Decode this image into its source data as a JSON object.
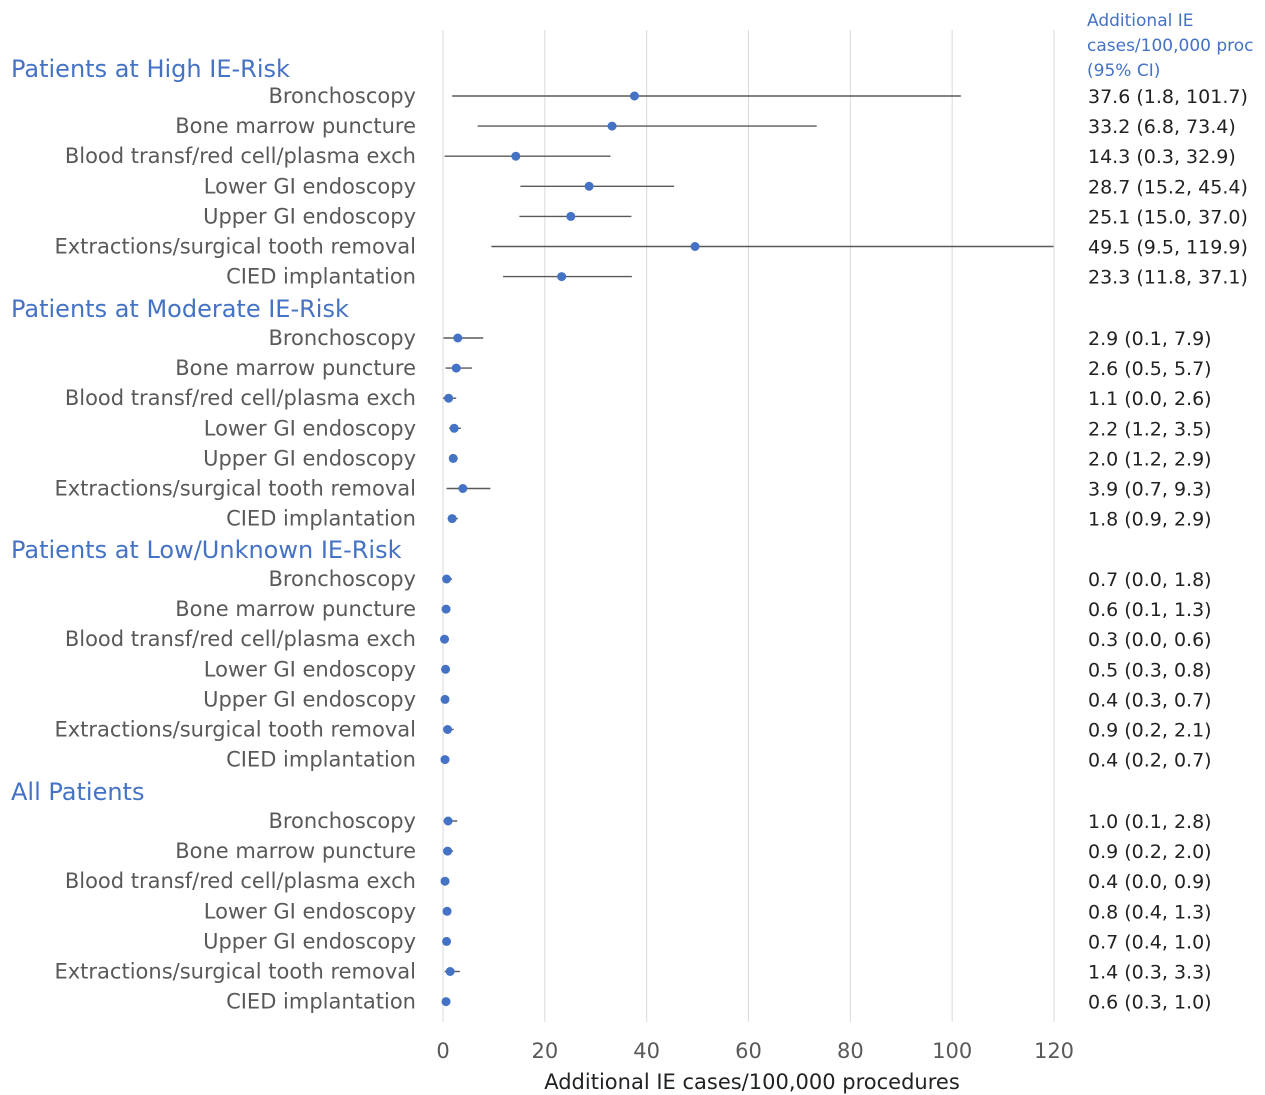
{
  "chart_data": {
    "type": "forest",
    "xlabel": "Additional IE cases/100,000 procedures",
    "xlim": [
      0,
      120
    ],
    "xticks": [
      0,
      20,
      40,
      60,
      80,
      100,
      120
    ],
    "grid": true,
    "ci_column_header": [
      "Additional IE",
      "cases/100,000 proc",
      "(95% CI)"
    ],
    "colors": {
      "point": "#4472C4",
      "ci_line": "#595959",
      "grid": "#D9D9D9",
      "group_title": "#4472C4"
    },
    "groups": [
      {
        "name": "Patients at High IE-Risk",
        "rows": [
          {
            "label": "Bronchoscopy",
            "value": 37.6,
            "lo": 1.8,
            "hi": 101.7,
            "text": "37.6 (1.8, 101.7)"
          },
          {
            "label": "Bone marrow puncture",
            "value": 33.2,
            "lo": 6.8,
            "hi": 73.4,
            "text": "33.2 (6.8, 73.4)"
          },
          {
            "label": "Blood transf/red cell/plasma exch",
            "value": 14.3,
            "lo": 0.3,
            "hi": 32.9,
            "text": "14.3 (0.3, 32.9)"
          },
          {
            "label": "Lower GI endoscopy",
            "value": 28.7,
            "lo": 15.2,
            "hi": 45.4,
            "text": "28.7 (15.2, 45.4)"
          },
          {
            "label": "Upper GI endoscopy",
            "value": 25.1,
            "lo": 15.0,
            "hi": 37.0,
            "text": "25.1 (15.0, 37.0)"
          },
          {
            "label": "Extractions/surgical tooth removal",
            "value": 49.5,
            "lo": 9.5,
            "hi": 119.9,
            "text": "49.5 (9.5, 119.9)"
          },
          {
            "label": "CIED implantation",
            "value": 23.3,
            "lo": 11.8,
            "hi": 37.1,
            "text": "23.3 (11.8, 37.1)"
          }
        ]
      },
      {
        "name": "Patients at Moderate IE-Risk",
        "rows": [
          {
            "label": "Bronchoscopy",
            "value": 2.9,
            "lo": 0.1,
            "hi": 7.9,
            "text": "2.9 (0.1, 7.9)"
          },
          {
            "label": "Bone marrow puncture",
            "value": 2.6,
            "lo": 0.5,
            "hi": 5.7,
            "text": "2.6 (0.5, 5.7)"
          },
          {
            "label": "Blood transf/red cell/plasma exch",
            "value": 1.1,
            "lo": 0.0,
            "hi": 2.6,
            "text": "1.1 (0.0, 2.6)"
          },
          {
            "label": "Lower GI endoscopy",
            "value": 2.2,
            "lo": 1.2,
            "hi": 3.5,
            "text": "2.2 (1.2, 3.5)"
          },
          {
            "label": "Upper GI endoscopy",
            "value": 2.0,
            "lo": 1.2,
            "hi": 2.9,
            "text": "2.0 (1.2, 2.9)"
          },
          {
            "label": "Extractions/surgical tooth removal",
            "value": 3.9,
            "lo": 0.7,
            "hi": 9.3,
            "text": "3.9 (0.7, 9.3)"
          },
          {
            "label": "CIED implantation",
            "value": 1.8,
            "lo": 0.9,
            "hi": 2.9,
            "text": "1.8 (0.9, 2.9)"
          }
        ]
      },
      {
        "name": "Patients at Low/Unknown IE-Risk",
        "rows": [
          {
            "label": "Bronchoscopy",
            "value": 0.7,
            "lo": 0.0,
            "hi": 1.8,
            "text": "0.7 (0.0, 1.8)"
          },
          {
            "label": "Bone marrow puncture",
            "value": 0.6,
            "lo": 0.1,
            "hi": 1.3,
            "text": "0.6 (0.1, 1.3)"
          },
          {
            "label": "Blood transf/red cell/plasma exch",
            "value": 0.3,
            "lo": 0.0,
            "hi": 0.6,
            "text": "0.3 (0.0, 0.6)"
          },
          {
            "label": "Lower GI endoscopy",
            "value": 0.5,
            "lo": 0.3,
            "hi": 0.8,
            "text": "0.5 (0.3, 0.8)"
          },
          {
            "label": "Upper GI endoscopy",
            "value": 0.4,
            "lo": 0.3,
            "hi": 0.7,
            "text": "0.4 (0.3, 0.7)"
          },
          {
            "label": "Extractions/surgical tooth removal",
            "value": 0.9,
            "lo": 0.2,
            "hi": 2.1,
            "text": "0.9 (0.2, 2.1)"
          },
          {
            "label": "CIED implantation",
            "value": 0.4,
            "lo": 0.2,
            "hi": 0.7,
            "text": "0.4 (0.2, 0.7)"
          }
        ]
      },
      {
        "name": "All Patients",
        "rows": [
          {
            "label": "Bronchoscopy",
            "value": 1.0,
            "lo": 0.1,
            "hi": 2.8,
            "text": "1.0 (0.1, 2.8)"
          },
          {
            "label": "Bone marrow puncture",
            "value": 0.9,
            "lo": 0.2,
            "hi": 2.0,
            "text": "0.9 (0.2, 2.0)"
          },
          {
            "label": "Blood transf/red cell/plasma exch",
            "value": 0.4,
            "lo": 0.0,
            "hi": 0.9,
            "text": "0.4 (0.0, 0.9)"
          },
          {
            "label": "Lower GI endoscopy",
            "value": 0.8,
            "lo": 0.4,
            "hi": 1.3,
            "text": "0.8 (0.4, 1.3)"
          },
          {
            "label": "Upper GI endoscopy",
            "value": 0.7,
            "lo": 0.4,
            "hi": 1.0,
            "text": "0.7 (0.4, 1.0)"
          },
          {
            "label": "Extractions/surgical tooth removal",
            "value": 1.4,
            "lo": 0.3,
            "hi": 3.3,
            "text": "1.4 (0.3, 3.3)"
          },
          {
            "label": "CIED implantation",
            "value": 0.6,
            "lo": 0.3,
            "hi": 1.0,
            "text": "0.6 (0.3, 1.0)"
          }
        ]
      }
    ]
  }
}
